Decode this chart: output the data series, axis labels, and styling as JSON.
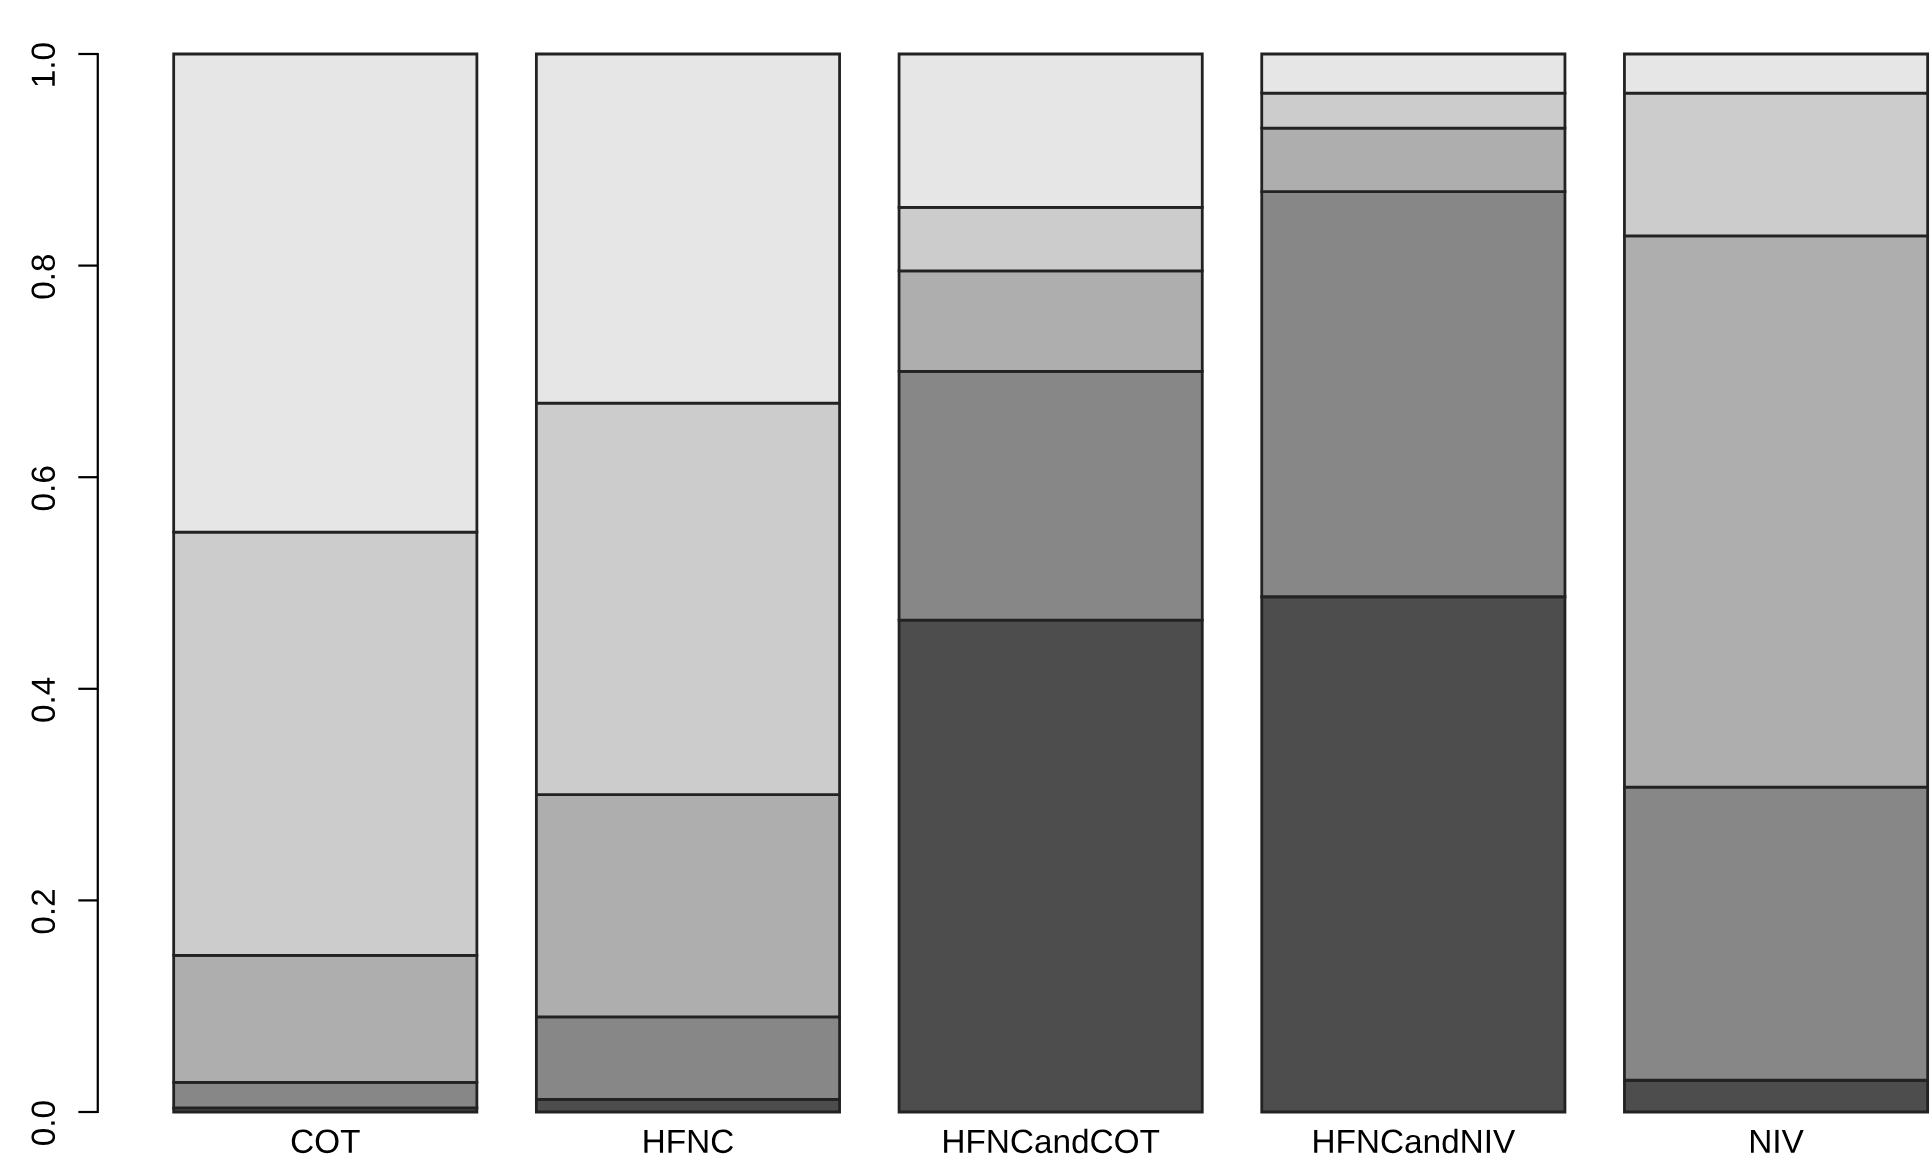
{
  "chart_data": {
    "type": "bar",
    "stacked": true,
    "categories": [
      "COT",
      "HFNC",
      "HFNCandCOT",
      "HFNCandNIV",
      "NIV"
    ],
    "series": [
      {
        "color": "#4d4d4d",
        "values": [
          0.004,
          0.012,
          0.465,
          0.487,
          0.03
        ]
      },
      {
        "color": "#878787",
        "values": [
          0.024,
          0.078,
          0.235,
          0.383,
          0.277
        ]
      },
      {
        "color": "#aeaeae",
        "values": [
          0.12,
          0.21,
          0.095,
          0.06,
          0.521
        ]
      },
      {
        "color": "#cccccc",
        "values": [
          0.4,
          0.37,
          0.06,
          0.033,
          0.135
        ]
      },
      {
        "color": "#e6e6e6",
        "values": [
          0.452,
          0.33,
          0.145,
          0.037,
          0.037
        ]
      }
    ],
    "ylim": [
      0,
      1
    ],
    "yticks": [
      {
        "value": 0,
        "label": "0.0"
      },
      0.2,
      0.4,
      0.6,
      0.8,
      {
        "value": 1,
        "label": "1.0"
      }
    ],
    "grid": false,
    "legend": false
  }
}
